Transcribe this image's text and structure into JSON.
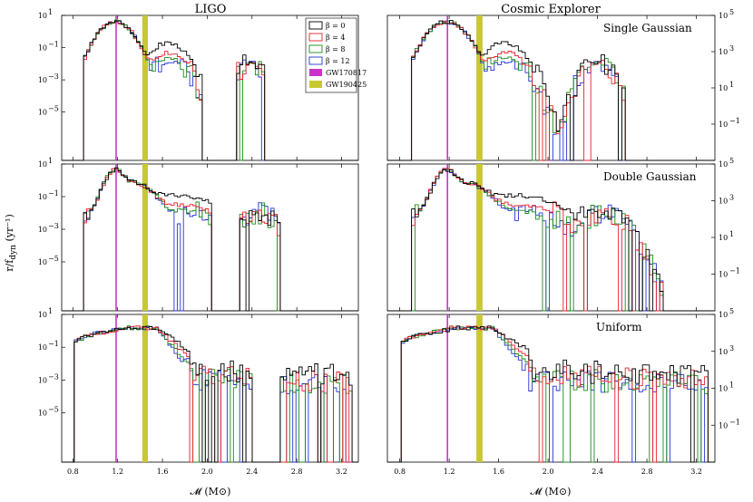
{
  "chart_data": {
    "type": "line",
    "title": "",
    "columns": [
      "LIGO",
      "Cosmic Explorer"
    ],
    "rows": [
      "Single Gaussian",
      "Double Gaussian",
      "Uniform"
    ],
    "xlabel": "𝓜 (M⊙)",
    "ylabel": "r/f",
    "ylabel_sub": "dyn",
    "ylabel_unit": " (yr⁻¹)",
    "xlim": [
      0.7,
      3.35
    ],
    "xticks": [
      0.8,
      1.2,
      1.6,
      2.0,
      2.4,
      2.8,
      3.2
    ],
    "xtick_labels": [
      "0.8",
      "1.2",
      "1.6",
      "2.0",
      "2.4",
      "2.8",
      "3.2"
    ],
    "ylim_left_exp": [
      -8,
      1
    ],
    "yticks_left_exp": [
      1,
      -1,
      -3,
      -5
    ],
    "ytick_labels_left": [
      "10",
      "10",
      "10",
      "10"
    ],
    "ytick_exps_left": [
      "1",
      "−1",
      "−3",
      "−5"
    ],
    "ylim_right_exp": [
      -3,
      5
    ],
    "yticks_right_exp": [
      5,
      3,
      1,
      -1
    ],
    "ytick_labels_right": [
      "10",
      "10",
      "10",
      "10"
    ],
    "ytick_exps_right": [
      "5",
      "3",
      "1",
      "−1"
    ],
    "legend": {
      "position": "top-right of LIGO single gaussian panel",
      "entries": [
        {
          "label": "β = 0",
          "color": "#000000",
          "kind": "box"
        },
        {
          "label": "β = 4",
          "color": "#e8212b",
          "kind": "box"
        },
        {
          "label": "β = 8",
          "color": "#1a8a1a",
          "kind": "box"
        },
        {
          "label": "β = 12",
          "color": "#2433d9",
          "kind": "box"
        },
        {
          "label": "GW170817",
          "color": "#cc33cc",
          "kind": "patch"
        },
        {
          "label": "GW190425",
          "color": "#c8c832",
          "kind": "patch"
        }
      ]
    },
    "vlines": [
      {
        "name": "GW170817",
        "x": 1.186,
        "color": "#cc33cc"
      },
      {
        "name": "GW190425",
        "x_range": [
          1.42,
          1.47
        ],
        "color": "#c8c832"
      }
    ],
    "series_colors": {
      "b0": "#000000",
      "b4": "#e8212b",
      "b8": "#1a8a1a",
      "b12": "#2433d9"
    }
  }
}
